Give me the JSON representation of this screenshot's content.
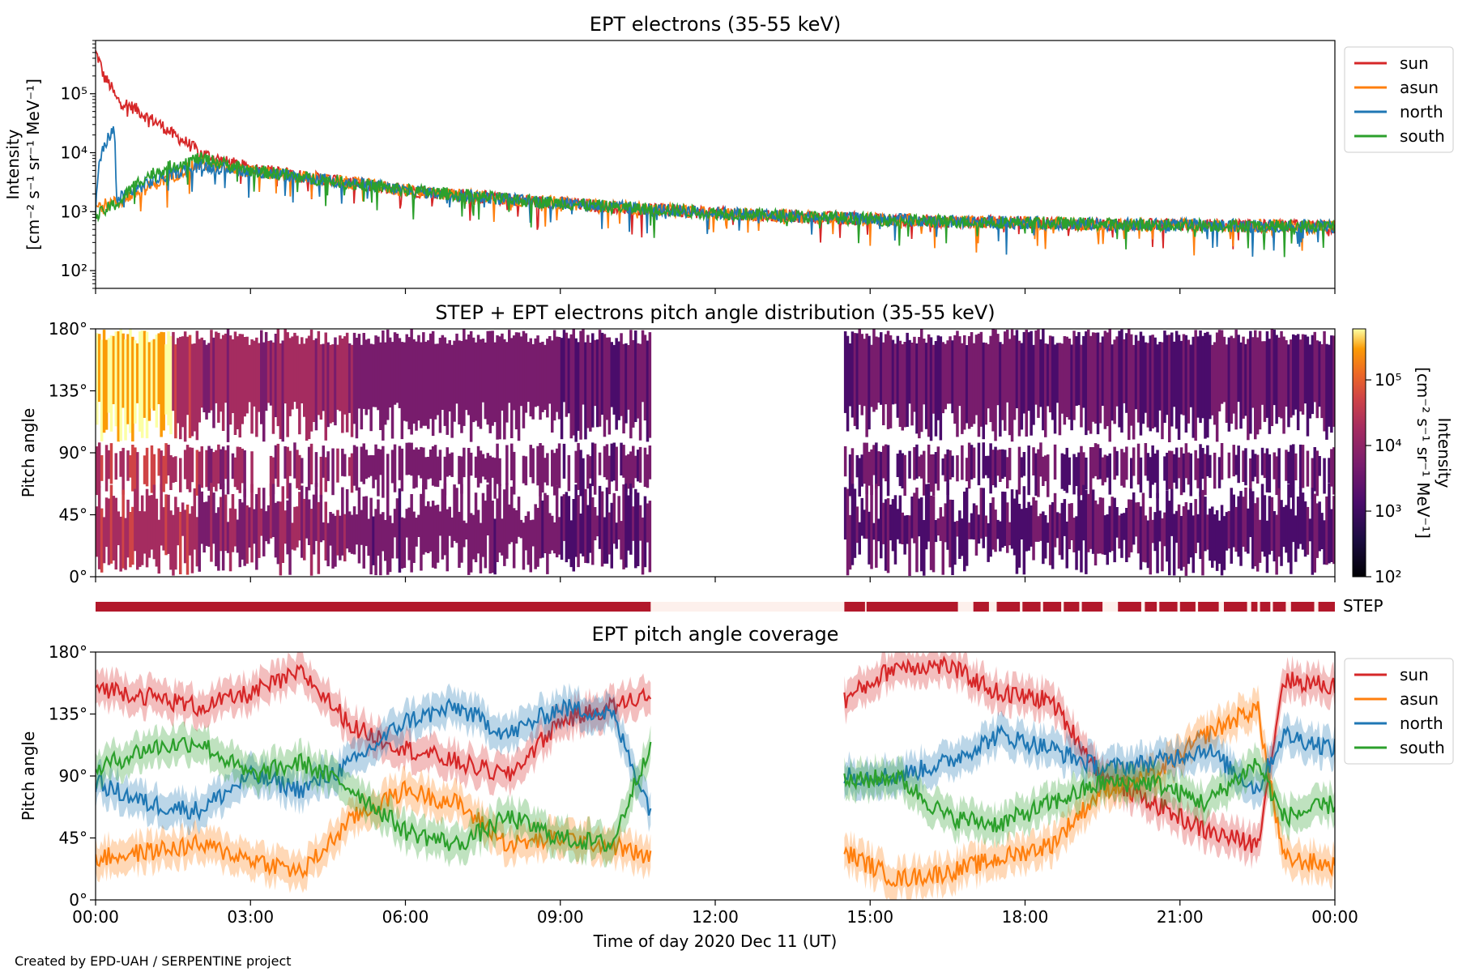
{
  "credit": "Created by EPD-UAH / SERPENTINE project",
  "colors": {
    "sun": "#d62728",
    "asun": "#ff7f0e",
    "north": "#1f77b4",
    "south": "#2ca02c",
    "step_bar": "#b2182b",
    "step_gap": "#fdf0ec"
  },
  "chart_data": [
    {
      "type": "line",
      "title": "EPT electrons (35-55 keV)",
      "ylabel_line1": "Intensity",
      "ylabel_line2": "[cm⁻² s⁻¹ sr⁻¹ MeV⁻¹]",
      "yscale": "log",
      "ylim": [
        50,
        800000
      ],
      "ytick_labels": [
        "10²",
        "10³",
        "10⁴",
        "10⁵"
      ],
      "ytick_values": [
        100,
        1000,
        10000,
        100000
      ],
      "xlim_hours": [
        0,
        24
      ],
      "legend": [
        "sun",
        "asun",
        "north",
        "south"
      ],
      "legend_position": "outside-right-top",
      "series": [
        {
          "name": "sun",
          "x_hours": [
            0,
            0.15,
            0.4,
            1,
            1.5,
            2,
            2.5,
            3,
            4,
            5,
            6,
            8,
            10,
            12,
            14,
            16,
            18,
            20,
            22,
            24
          ],
          "y": [
            500000,
            200000,
            80000,
            40000,
            20000,
            10000,
            7000,
            5500,
            4000,
            3000,
            2300,
            1600,
            1200,
            950,
            800,
            700,
            650,
            600,
            580,
            560
          ]
        },
        {
          "name": "asun",
          "x_hours": [
            0,
            0.5,
            1,
            1.5,
            2,
            2.5,
            3,
            4,
            5,
            6,
            8,
            10,
            12,
            14,
            16,
            18,
            20,
            22,
            24
          ],
          "y": [
            1200,
            1500,
            2500,
            4000,
            6500,
            5500,
            4800,
            3800,
            3000,
            2300,
            1600,
            1200,
            950,
            800,
            700,
            650,
            600,
            580,
            560
          ]
        },
        {
          "name": "north",
          "x_hours": [
            0,
            0.4,
            0.35,
            1,
            1.5,
            2,
            2.5,
            3,
            4,
            5,
            6,
            8,
            10,
            12,
            14,
            16,
            18,
            20,
            22,
            24
          ],
          "y": [
            1000,
            1500,
            25000,
            3000,
            4500,
            6000,
            5500,
            4800,
            3800,
            3000,
            2300,
            1600,
            1200,
            950,
            800,
            700,
            650,
            600,
            580,
            560
          ]
        },
        {
          "name": "south",
          "x_hours": [
            0,
            0.5,
            1,
            1.5,
            2,
            2.5,
            3,
            4,
            5,
            6,
            8,
            10,
            12,
            14,
            16,
            18,
            20,
            22,
            24
          ],
          "y": [
            800,
            1500,
            4000,
            6000,
            8000,
            6500,
            5000,
            3800,
            3000,
            2300,
            1600,
            1200,
            950,
            800,
            700,
            650,
            600,
            580,
            560
          ]
        }
      ]
    },
    {
      "type": "heatmap",
      "title": "STEP + EPT electrons pitch angle distribution (35-55 keV)",
      "ylabel": "Pitch angle",
      "ylim_deg": [
        0,
        180
      ],
      "ytick_labels": [
        "0°",
        "45°",
        "90°",
        "135°",
        "180°"
      ],
      "xlim_hours": [
        0,
        24
      ],
      "data_gap_hours": [
        10.75,
        14.5
      ],
      "colorbar": {
        "label_line1": "Intensity",
        "label_line2": "[cm⁻² s⁻¹ sr⁻¹ MeV⁻¹]",
        "scale": "log",
        "range": [
          100,
          600000
        ],
        "tick_labels": [
          "10²",
          "10³",
          "10⁴",
          "10⁵"
        ],
        "colormap": "inferno"
      }
    },
    {
      "type": "bar",
      "label": "STEP",
      "xlim_hours": [
        0,
        24
      ],
      "gap_hours": [
        [
          10.75,
          14.5
        ],
        [
          14.9,
          14.93
        ],
        [
          16.7,
          17.0
        ],
        [
          17.3,
          17.45
        ],
        [
          17.9,
          17.95
        ],
        [
          18.3,
          18.35
        ],
        [
          18.7,
          18.75
        ],
        [
          19.05,
          19.1
        ],
        [
          19.5,
          19.8
        ],
        [
          20.25,
          20.32
        ],
        [
          20.55,
          20.6
        ],
        [
          20.95,
          21.0
        ],
        [
          21.3,
          21.35
        ],
        [
          21.75,
          21.85
        ],
        [
          22.3,
          22.38
        ],
        [
          22.5,
          22.55
        ],
        [
          22.75,
          22.8
        ],
        [
          23.05,
          23.15
        ],
        [
          23.6,
          23.68
        ]
      ]
    },
    {
      "type": "line",
      "title": "EPT pitch angle coverage",
      "ylabel": "Pitch angle",
      "xlabel": "Time of day 2020 Dec 11 (UT)",
      "ylim_deg": [
        0,
        180
      ],
      "ytick_labels": [
        "0°",
        "45°",
        "90°",
        "135°",
        "180°"
      ],
      "xtick_labels": [
        "00:00",
        "03:00",
        "06:00",
        "09:00",
        "12:00",
        "15:00",
        "18:00",
        "21:00",
        "00:00"
      ],
      "xtick_hours": [
        0,
        3,
        6,
        9,
        12,
        15,
        18,
        21,
        24
      ],
      "legend": [
        "sun",
        "asun",
        "north",
        "south"
      ],
      "legend_position": "outside-right-top",
      "data_gap_hours": [
        10.75,
        14.5
      ],
      "series": [
        {
          "name": "sun",
          "x_hours": [
            0,
            1,
            2,
            3,
            4,
            5,
            6,
            7,
            8,
            9,
            10,
            10.75,
            14.5,
            15.5,
            16.5,
            17.5,
            18.5,
            19.5,
            20.5,
            21.5,
            22.5,
            23,
            24
          ],
          "y": [
            155,
            148,
            140,
            150,
            165,
            125,
            110,
            100,
            90,
            130,
            140,
            150,
            145,
            170,
            170,
            150,
            145,
            90,
            70,
            50,
            40,
            160,
            155
          ]
        },
        {
          "name": "asun",
          "x_hours": [
            0,
            1,
            2,
            3,
            4,
            5,
            6,
            7,
            8,
            9,
            10,
            10.75,
            14.5,
            15.5,
            16.5,
            17.5,
            18.5,
            19.5,
            20.5,
            21.5,
            22.5,
            23,
            24
          ],
          "y": [
            30,
            35,
            40,
            30,
            20,
            60,
            80,
            70,
            40,
            45,
            40,
            30,
            35,
            15,
            20,
            30,
            40,
            80,
            90,
            120,
            140,
            30,
            25
          ]
        },
        {
          "name": "north",
          "x_hours": [
            0,
            1,
            2,
            3,
            4,
            5,
            6,
            7,
            8,
            9,
            10,
            10.75,
            14.5,
            15.5,
            16.5,
            17.5,
            18.5,
            19.5,
            20.5,
            21.5,
            22.5,
            23,
            24
          ],
          "y": [
            85,
            70,
            65,
            90,
            80,
            100,
            130,
            140,
            120,
            140,
            135,
            65,
            90,
            90,
            100,
            120,
            110,
            95,
            100,
            110,
            80,
            120,
            110
          ]
        },
        {
          "name": "south",
          "x_hours": [
            0,
            1,
            2,
            3,
            4,
            5,
            6,
            7,
            8,
            9,
            10,
            10.75,
            14.5,
            15.5,
            16.5,
            17.5,
            18.5,
            19.5,
            20.5,
            21.5,
            22.5,
            23,
            24
          ],
          "y": [
            95,
            110,
            115,
            90,
            100,
            80,
            50,
            40,
            60,
            45,
            40,
            115,
            85,
            90,
            60,
            55,
            70,
            85,
            85,
            70,
            100,
            60,
            70
          ]
        }
      ]
    }
  ]
}
